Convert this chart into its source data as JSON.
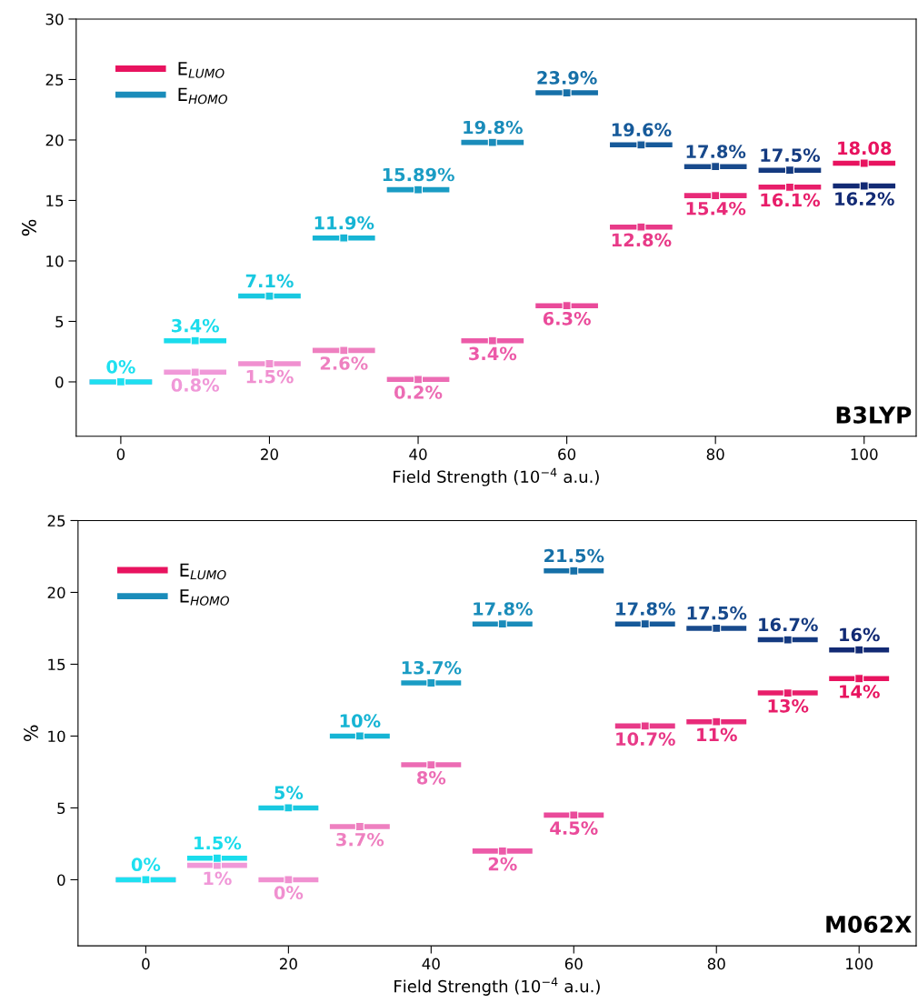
{
  "chart_data": [
    {
      "type": "scatter",
      "xlabel": "Field Strength (10$^{−4}$ a.u.)",
      "ylabel": "%",
      "xlim": [
        -6,
        107
      ],
      "xticks": [
        0,
        20,
        40,
        60,
        80,
        100
      ],
      "ylim": [
        -4.5,
        30
      ],
      "yticks": [
        0,
        5,
        10,
        15,
        20,
        25,
        30
      ],
      "grid": false,
      "legend": "top left",
      "annotations": [
        "B3LYP"
      ],
      "series": [
        {
          "name": "E$_{LUMO}$",
          "color": "#e8135f",
          "x": [
            0,
            10,
            20,
            30,
            40,
            50,
            60,
            70,
            80,
            90,
            100
          ],
          "values": [
            0,
            0.8,
            1.5,
            2.6,
            0.2,
            3.4,
            6.3,
            12.8,
            15.4,
            16.1,
            18.08
          ],
          "colors": [
            "#e88ed2",
            "#f098d8",
            "#f090d0",
            "#ee80c0",
            "#ec6cb4",
            "#ec5aa8",
            "#ea4a9a",
            "#e83a88",
            "#e82a78",
            "#e81e6a",
            "#e8135f"
          ],
          "value_labels": [
            null,
            "0.8%",
            "1.5%",
            "2.6%",
            "0.2%",
            "3.4%",
            "6.3%",
            "12.8%",
            "15.4%",
            "16.1%",
            "18.08"
          ]
        },
        {
          "name": "E$_{HOMO}$",
          "color": "#1a8cba",
          "x": [
            0,
            10,
            20,
            30,
            40,
            50,
            60,
            70,
            80,
            90,
            100
          ],
          "values": [
            0,
            3.4,
            7.1,
            11.9,
            15.89,
            19.8,
            23.9,
            19.6,
            17.8,
            17.5,
            16.2
          ],
          "colors": [
            "#1ee0f0",
            "#1adcec",
            "#18c8e0",
            "#16b4d4",
            "#1a9cc4",
            "#1a8cba",
            "#1670a8",
            "#165a9a",
            "#184a8c",
            "#143a80",
            "#122a74"
          ],
          "value_labels": [
            "0%",
            "3.4%",
            "7.1%",
            "11.9%",
            "15.89%",
            "19.8%",
            "23.9%",
            "19.6%",
            "17.8%",
            "17.5%",
            "16.2%"
          ]
        }
      ]
    },
    {
      "type": "scatter",
      "xlabel": "Field Strength (10$^{−4}$ a.u.)",
      "ylabel": "%",
      "xlim": [
        -9.5,
        108
      ],
      "xticks": [
        0,
        20,
        40,
        60,
        80,
        100
      ],
      "ylim": [
        -4.6,
        25
      ],
      "yticks": [
        0,
        5,
        10,
        15,
        20,
        25
      ],
      "grid": false,
      "legend": "top left",
      "annotations": [
        "M062X"
      ],
      "series": [
        {
          "name": "E$_{LUMO}$",
          "color": "#e8135f",
          "x": [
            0,
            10,
            20,
            30,
            40,
            50,
            60,
            70,
            80,
            90,
            100
          ],
          "values": [
            0,
            1,
            0,
            3.7,
            8,
            2,
            4.5,
            10.7,
            11,
            13,
            14
          ],
          "colors": [
            "#e88ed2",
            "#f098d8",
            "#f090d0",
            "#ee80c0",
            "#ec6cb4",
            "#ec5aa8",
            "#ea4a9a",
            "#e83a88",
            "#e82a78",
            "#e81e6a",
            "#e8135f"
          ],
          "value_labels": [
            null,
            "1%",
            "0%",
            "3.7%",
            "8%",
            "2%",
            "4.5%",
            "10.7%",
            "11%",
            "13%",
            "14%"
          ]
        },
        {
          "name": "E$_{HOMO}$",
          "color": "#1a8cba",
          "x": [
            0,
            10,
            20,
            30,
            40,
            50,
            60,
            70,
            80,
            90,
            100
          ],
          "values": [
            0,
            1.5,
            5,
            10,
            13.7,
            17.8,
            21.5,
            17.8,
            17.5,
            16.7,
            16
          ],
          "colors": [
            "#1ee0f0",
            "#1adcec",
            "#18c8e0",
            "#16b4d4",
            "#1a9cc4",
            "#1a8cba",
            "#1670a8",
            "#165a9a",
            "#184a8c",
            "#143a80",
            "#122a74"
          ],
          "value_labels": [
            "0%",
            "1.5%",
            "5%",
            "10%",
            "13.7%",
            "17.8%",
            "21.5%",
            "17.8%",
            "17.5%",
            "16.7%",
            "16%"
          ]
        }
      ]
    }
  ]
}
